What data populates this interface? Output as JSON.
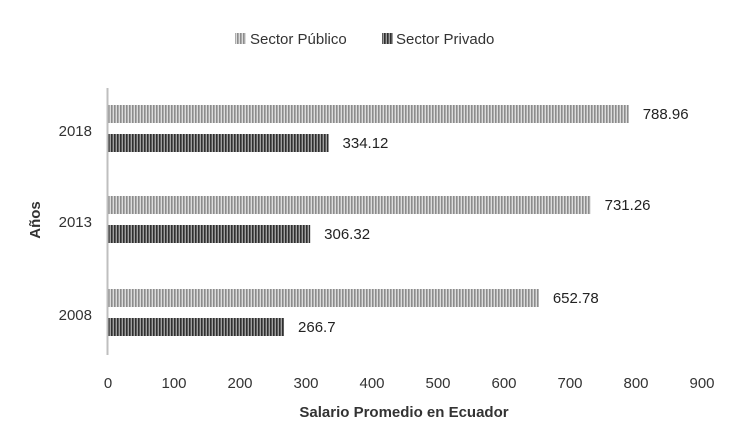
{
  "chart_data": {
    "type": "bar",
    "orientation": "horizontal",
    "categories": [
      "2008",
      "2013",
      "2018"
    ],
    "series": [
      {
        "name": "Sector Público",
        "values": [
          652.78,
          731.26,
          788.96
        ],
        "color": "#a6a6a6"
      },
      {
        "name": "Sector Privado",
        "values": [
          266.7,
          306.32,
          334.12
        ],
        "color": "#595959"
      }
    ],
    "data_labels": {
      "Sector Público": [
        "652.78",
        "731.26",
        "788.96"
      ],
      "Sector Privado": [
        "266.7",
        "306.32",
        "334.12"
      ]
    },
    "title": "",
    "xlabel": "Salario Promedio en Ecuador",
    "ylabel": "Años",
    "xlim": [
      0,
      900
    ],
    "xticks": [
      0,
      100,
      200,
      300,
      400,
      500,
      600,
      700,
      800,
      900
    ],
    "grid": false,
    "legend_position": "top-center",
    "axis_color": "#bfbfbf"
  }
}
